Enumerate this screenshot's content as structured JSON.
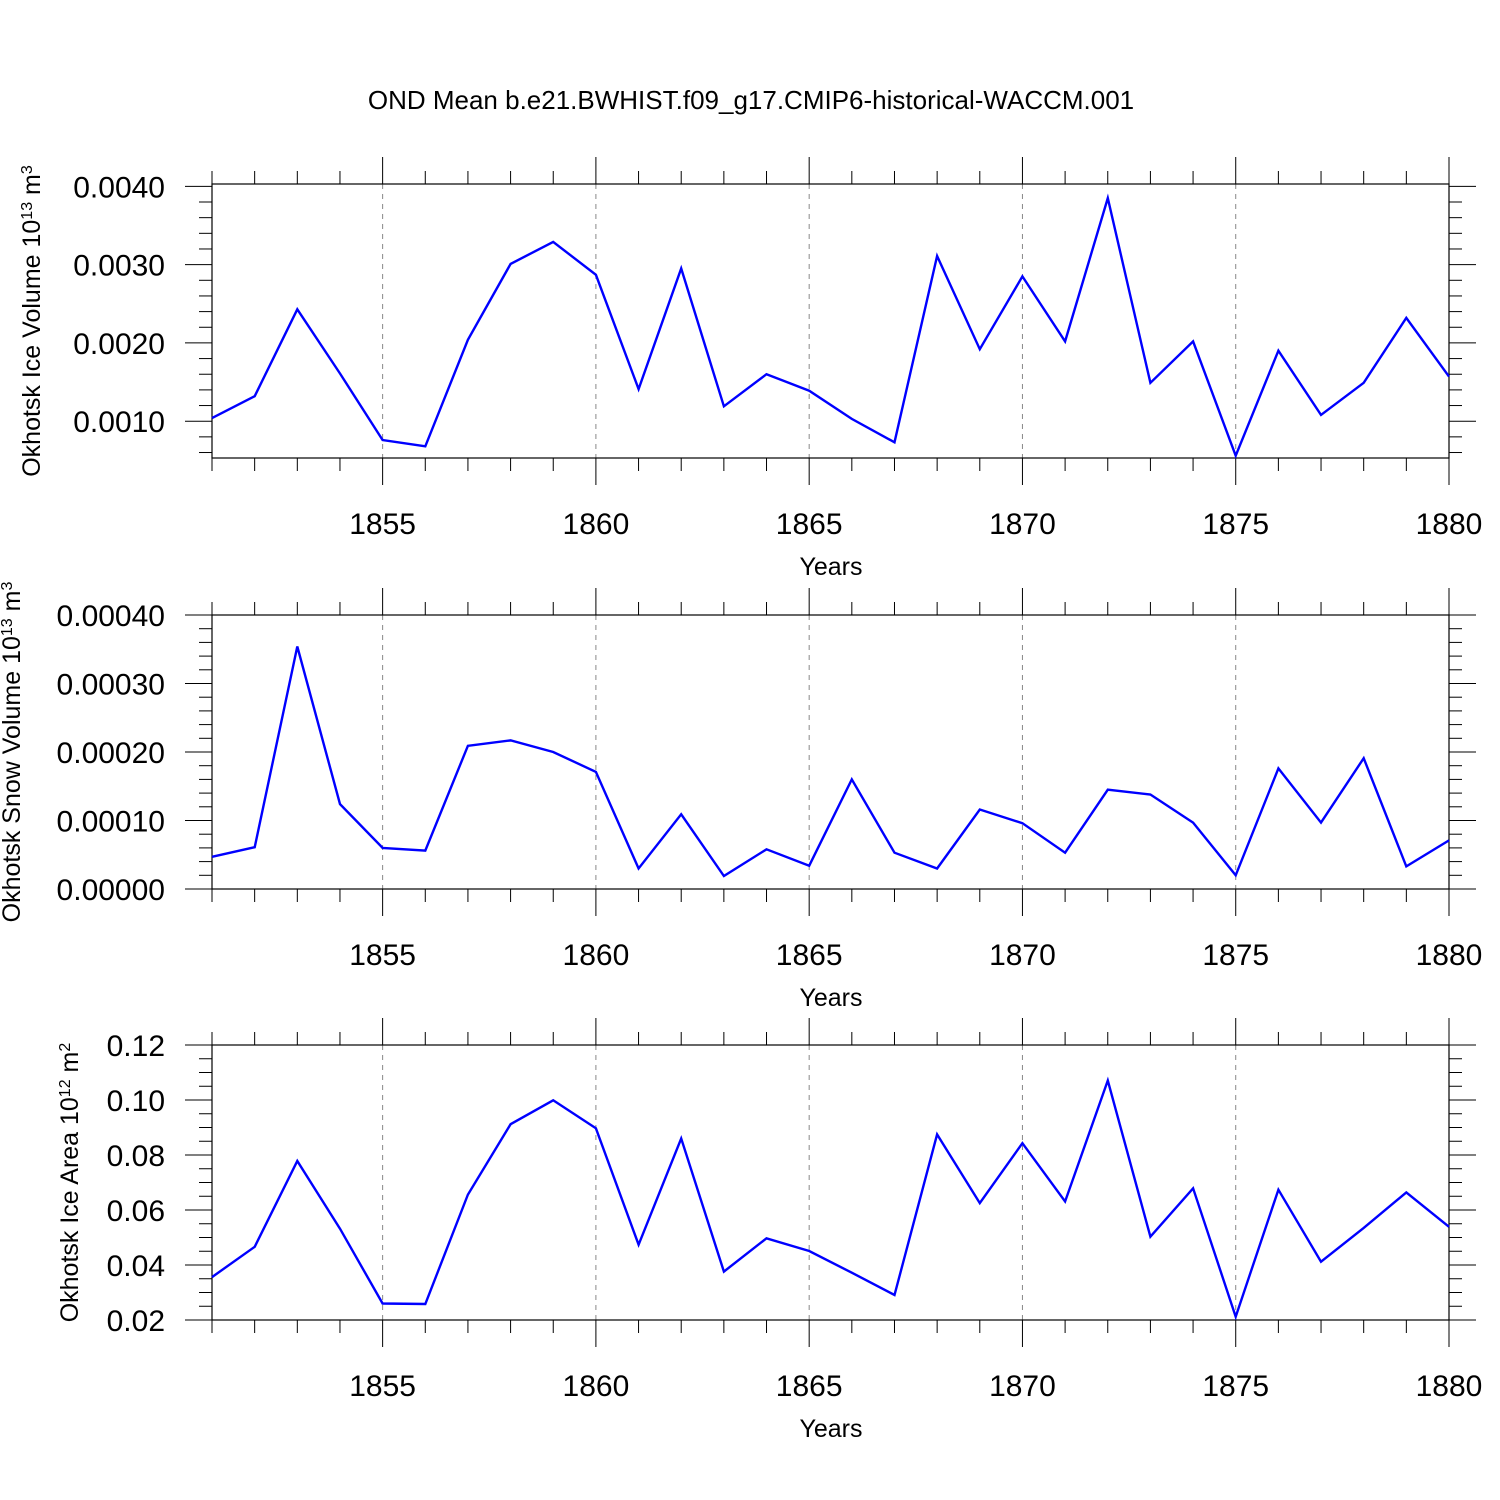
{
  "figure": {
    "title": "OND Mean b.e21.BWHIST.f09_g17.CMIP6-historical-WACCM.001"
  },
  "colors": {
    "line": "#0000ff",
    "axis": "#000000",
    "grid": "#888888"
  },
  "chart_data": [
    {
      "type": "line",
      "ylabel": "Okhotsk Ice Volume 10",
      "ylabel_exp": "13",
      "ylabel_unit": " m",
      "ylabel_unit_exp": "3",
      "xlabel": "Years",
      "xlim": [
        1851,
        1880
      ],
      "ylim": [
        0.00053,
        0.00403
      ],
      "xticks": [
        1855,
        1860,
        1865,
        1870,
        1875,
        1880
      ],
      "xtick_labels": [
        "1855",
        "1860",
        "1865",
        "1870",
        "1875",
        "1880"
      ],
      "yticks": [
        0.001,
        0.002,
        0.003,
        0.004
      ],
      "ytick_labels": [
        "0.0010",
        "0.0020",
        "0.0030",
        "0.0040"
      ],
      "y_minor_step": 0.0002,
      "x": [
        1851,
        1852,
        1853,
        1854,
        1855,
        1856,
        1857,
        1858,
        1859,
        1860,
        1861,
        1862,
        1863,
        1864,
        1865,
        1866,
        1867,
        1868,
        1869,
        1870,
        1871,
        1872,
        1873,
        1874,
        1875,
        1876,
        1877,
        1878,
        1879,
        1880
      ],
      "series": [
        {
          "name": "Okhotsk Ice Volume",
          "values": [
            0.00104,
            0.00132,
            0.00243,
            0.00161,
            0.00076,
            0.00068,
            0.00204,
            0.00301,
            0.00329,
            0.00287,
            0.00141,
            0.00295,
            0.00119,
            0.0016,
            0.00139,
            0.00103,
            0.00073,
            0.00311,
            0.00192,
            0.00285,
            0.00202,
            0.00385,
            0.00149,
            0.00202,
            0.00056,
            0.0019,
            0.00108,
            0.00149,
            0.00232,
            0.00157
          ]
        }
      ]
    },
    {
      "type": "line",
      "ylabel": "Okhotsk Snow Volume 10",
      "ylabel_exp": "13",
      "ylabel_unit": " m",
      "ylabel_unit_exp": "3",
      "xlabel": "Years",
      "xlim": [
        1851,
        1880
      ],
      "ylim": [
        0,
        0.0004
      ],
      "xticks": [
        1855,
        1860,
        1865,
        1870,
        1875,
        1880
      ],
      "xtick_labels": [
        "1855",
        "1860",
        "1865",
        "1870",
        "1875",
        "1880"
      ],
      "yticks": [
        0,
        0.0001,
        0.0002,
        0.0003,
        0.0004
      ],
      "ytick_labels": [
        "0.00000",
        "0.00010",
        "0.00020",
        "0.00030",
        "0.00040"
      ],
      "y_minor_step": 2e-05,
      "x": [
        1851,
        1852,
        1853,
        1854,
        1855,
        1856,
        1857,
        1858,
        1859,
        1860,
        1861,
        1862,
        1863,
        1864,
        1865,
        1866,
        1867,
        1868,
        1869,
        1870,
        1871,
        1872,
        1873,
        1874,
        1875,
        1876,
        1877,
        1878,
        1879,
        1880
      ],
      "series": [
        {
          "name": "Okhotsk Snow Volume",
          "values": [
            4.7e-05,
            6.1e-05,
            0.000354,
            0.000124,
            6e-05,
            5.6e-05,
            0.000209,
            0.000217,
            0.0002,
            0.000171,
            3e-05,
            0.000109,
            1.9e-05,
            5.8e-05,
            3.4e-05,
            0.00016,
            5.3e-05,
            3e-05,
            0.000116,
            9.6e-05,
            5.3e-05,
            0.000145,
            0.000138,
            9.7e-05,
            2e-05,
            0.000176,
            9.7e-05,
            0.000191,
            3.3e-05,
            7.1e-05
          ]
        }
      ]
    },
    {
      "type": "line",
      "ylabel": "Okhotsk Ice Area 10",
      "ylabel_exp": "12",
      "ylabel_unit": " m",
      "ylabel_unit_exp": "2",
      "xlabel": "Years",
      "xlim": [
        1851,
        1880
      ],
      "ylim": [
        0.02,
        0.12
      ],
      "xticks": [
        1855,
        1860,
        1865,
        1870,
        1875,
        1880
      ],
      "xtick_labels": [
        "1855",
        "1860",
        "1865",
        "1870",
        "1875",
        "1880"
      ],
      "yticks": [
        0.02,
        0.04,
        0.06,
        0.08,
        0.1,
        0.12
      ],
      "ytick_labels": [
        "0.02",
        "0.04",
        "0.06",
        "0.08",
        "0.10",
        "0.12"
      ],
      "y_minor_step": 0.005,
      "x": [
        1851,
        1852,
        1853,
        1854,
        1855,
        1856,
        1857,
        1858,
        1859,
        1860,
        1861,
        1862,
        1863,
        1864,
        1865,
        1866,
        1867,
        1868,
        1869,
        1870,
        1871,
        1872,
        1873,
        1874,
        1875,
        1876,
        1877,
        1878,
        1879,
        1880
      ],
      "series": [
        {
          "name": "Okhotsk Ice Area",
          "values": [
            0.0356,
            0.0466,
            0.0778,
            0.0532,
            0.026,
            0.0258,
            0.0656,
            0.0912,
            0.0999,
            0.0897,
            0.0474,
            0.086,
            0.0376,
            0.0497,
            0.0451,
            0.0372,
            0.0291,
            0.0875,
            0.0625,
            0.0843,
            0.0631,
            0.1071,
            0.0503,
            0.0679,
            0.0212,
            0.0674,
            0.0412,
            0.0535,
            0.0664,
            0.0539
          ]
        }
      ]
    }
  ]
}
